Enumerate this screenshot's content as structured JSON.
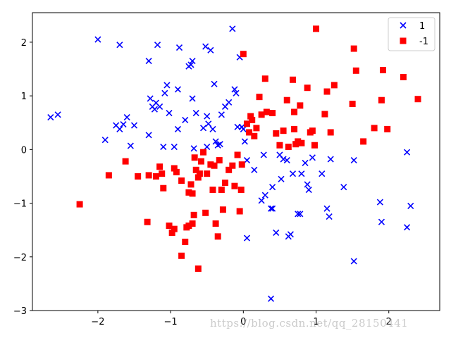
{
  "chart_data": {
    "type": "scatter",
    "title": "",
    "xlabel": "",
    "ylabel": "",
    "xlim": [
      -2.9,
      2.7
    ],
    "ylim": [
      -3.0,
      2.55
    ],
    "x_ticks": [
      -2,
      -1,
      0,
      1,
      2
    ],
    "y_ticks": [
      2,
      1,
      0,
      -1,
      -2,
      -3
    ],
    "tick_labels_x": [
      "−2",
      "−1",
      "0",
      "1",
      "2"
    ],
    "tick_labels_y": [
      "2",
      "1",
      "0",
      "−1",
      "−2",
      "−3"
    ],
    "grid": false,
    "legend_position": "upper-right",
    "series": [
      {
        "name": "1",
        "marker": "x",
        "color": "#0000ff",
        "points": [
          [
            -2.65,
            0.6
          ],
          [
            -2.55,
            0.65
          ],
          [
            -2.0,
            2.05
          ],
          [
            -1.9,
            0.18
          ],
          [
            -1.75,
            0.45
          ],
          [
            -1.7,
            1.95
          ],
          [
            -1.7,
            0.38
          ],
          [
            -1.65,
            0.47
          ],
          [
            -1.6,
            0.6
          ],
          [
            -1.55,
            0.07
          ],
          [
            -1.5,
            0.45
          ],
          [
            -1.3,
            1.65
          ],
          [
            -1.3,
            0.27
          ],
          [
            -1.28,
            0.95
          ],
          [
            -1.25,
            0.8
          ],
          [
            -1.22,
            0.75
          ],
          [
            -1.2,
            0.87
          ],
          [
            -1.18,
            1.95
          ],
          [
            -1.15,
            0.8
          ],
          [
            -1.1,
            0.05
          ],
          [
            -1.08,
            1.05
          ],
          [
            -1.05,
            1.2
          ],
          [
            -1.02,
            0.68
          ],
          [
            -0.95,
            0.05
          ],
          [
            -0.9,
            1.12
          ],
          [
            -0.9,
            0.38
          ],
          [
            -0.88,
            1.9
          ],
          [
            -0.8,
            0.55
          ],
          [
            -0.75,
            1.55
          ],
          [
            -0.72,
            1.58
          ],
          [
            -0.7,
            1.65
          ],
          [
            -0.7,
            0.95
          ],
          [
            -0.68,
            0.02
          ],
          [
            -0.65,
            0.68
          ],
          [
            -0.55,
            0.4
          ],
          [
            -0.52,
            1.92
          ],
          [
            -0.5,
            0.62
          ],
          [
            -0.5,
            0.05
          ],
          [
            -0.48,
            0.48
          ],
          [
            -0.45,
            1.85
          ],
          [
            -0.42,
            0.38
          ],
          [
            -0.4,
            1.22
          ],
          [
            -0.38,
            0.15
          ],
          [
            -0.35,
            0.08
          ],
          [
            -0.32,
            0.1
          ],
          [
            -0.3,
            0.65
          ],
          [
            -0.25,
            0.8
          ],
          [
            -0.2,
            0.88
          ],
          [
            -0.15,
            2.25
          ],
          [
            -0.12,
            1.12
          ],
          [
            -0.1,
            1.05
          ],
          [
            -0.08,
            0.42
          ],
          [
            -0.05,
            1.72
          ],
          [
            -0.02,
            0.42
          ],
          [
            0.0,
            0.38
          ],
          [
            0.02,
            0.15
          ],
          [
            0.05,
            -0.2
          ],
          [
            0.05,
            -1.65
          ],
          [
            0.15,
            -0.38
          ],
          [
            0.25,
            -0.95
          ],
          [
            0.28,
            -0.1
          ],
          [
            0.3,
            -0.85
          ],
          [
            0.38,
            -1.1
          ],
          [
            0.38,
            -2.78
          ],
          [
            0.4,
            -1.1
          ],
          [
            0.4,
            -0.7
          ],
          [
            0.45,
            -1.55
          ],
          [
            0.5,
            -0.1
          ],
          [
            0.52,
            -0.55
          ],
          [
            0.55,
            -0.18
          ],
          [
            0.6,
            -0.2
          ],
          [
            0.62,
            -1.62
          ],
          [
            0.65,
            -1.58
          ],
          [
            0.68,
            -0.45
          ],
          [
            0.75,
            -1.2
          ],
          [
            0.78,
            -1.2
          ],
          [
            0.8,
            -0.45
          ],
          [
            0.85,
            -0.25
          ],
          [
            0.88,
            -0.65
          ],
          [
            0.9,
            -0.75
          ],
          [
            0.95,
            -0.15
          ],
          [
            1.08,
            -0.45
          ],
          [
            1.15,
            -1.1
          ],
          [
            1.18,
            -1.25
          ],
          [
            1.2,
            -0.18
          ],
          [
            1.38,
            -0.7
          ],
          [
            1.52,
            -0.2
          ],
          [
            1.52,
            -2.08
          ],
          [
            1.88,
            -0.98
          ],
          [
            1.9,
            -1.35
          ],
          [
            2.25,
            -0.05
          ],
          [
            2.25,
            -1.45
          ],
          [
            2.3,
            -1.05
          ]
        ]
      },
      {
        "name": "-1",
        "marker": "s",
        "color": "#ff0000",
        "points": [
          [
            -2.25,
            -1.02
          ],
          [
            -1.85,
            -0.48
          ],
          [
            -1.62,
            -0.22
          ],
          [
            -1.45,
            -0.5
          ],
          [
            -1.32,
            -1.35
          ],
          [
            -1.3,
            -0.48
          ],
          [
            -1.2,
            -0.5
          ],
          [
            -1.15,
            -0.32
          ],
          [
            -1.12,
            -0.45
          ],
          [
            -1.1,
            -0.72
          ],
          [
            -1.02,
            -1.42
          ],
          [
            -0.98,
            -1.55
          ],
          [
            -0.95,
            -1.48
          ],
          [
            -0.95,
            -0.35
          ],
          [
            -0.92,
            -0.42
          ],
          [
            -0.85,
            -0.58
          ],
          [
            -0.85,
            -1.98
          ],
          [
            -0.8,
            -1.72
          ],
          [
            -0.78,
            -1.45
          ],
          [
            -0.75,
            -1.42
          ],
          [
            -0.75,
            -0.8
          ],
          [
            -0.72,
            -0.65
          ],
          [
            -0.7,
            -1.38
          ],
          [
            -0.7,
            -0.82
          ],
          [
            -0.68,
            -1.22
          ],
          [
            -0.67,
            -0.15
          ],
          [
            -0.65,
            -0.38
          ],
          [
            -0.62,
            -2.22
          ],
          [
            -0.62,
            -0.52
          ],
          [
            -0.6,
            -0.45
          ],
          [
            -0.58,
            -0.22
          ],
          [
            -0.55,
            -0.05
          ],
          [
            -0.52,
            -1.18
          ],
          [
            -0.5,
            -0.45
          ],
          [
            -0.45,
            -0.28
          ],
          [
            -0.42,
            -0.75
          ],
          [
            -0.4,
            -0.3
          ],
          [
            -0.38,
            -1.38
          ],
          [
            -0.35,
            -1.62
          ],
          [
            -0.33,
            -0.2
          ],
          [
            -0.3,
            -0.75
          ],
          [
            -0.28,
            -1.12
          ],
          [
            -0.25,
            -0.62
          ],
          [
            -0.2,
            -0.38
          ],
          [
            -0.15,
            -0.3
          ],
          [
            -0.12,
            -0.68
          ],
          [
            -0.08,
            -0.1
          ],
          [
            -0.05,
            -1.15
          ],
          [
            -0.03,
            -0.75
          ],
          [
            -0.02,
            -0.28
          ],
          [
            0.0,
            1.78
          ],
          [
            0.05,
            0.48
          ],
          [
            0.08,
            0.32
          ],
          [
            0.1,
            0.62
          ],
          [
            0.12,
            0.55
          ],
          [
            0.15,
            0.25
          ],
          [
            0.18,
            0.4
          ],
          [
            0.22,
            0.98
          ],
          [
            0.25,
            0.65
          ],
          [
            0.3,
            1.32
          ],
          [
            0.32,
            0.7
          ],
          [
            0.4,
            0.68
          ],
          [
            0.45,
            0.3
          ],
          [
            0.5,
            0.08
          ],
          [
            0.55,
            0.35
          ],
          [
            0.6,
            0.92
          ],
          [
            0.62,
            0.05
          ],
          [
            0.68,
            1.3
          ],
          [
            0.7,
            0.7
          ],
          [
            0.7,
            0.38
          ],
          [
            0.72,
            0.1
          ],
          [
            0.75,
            0.15
          ],
          [
            0.78,
            0.82
          ],
          [
            0.8,
            0.12
          ],
          [
            0.88,
            1.15
          ],
          [
            0.92,
            0.32
          ],
          [
            0.95,
            0.35
          ],
          [
            0.98,
            0.08
          ],
          [
            1.0,
            2.25
          ],
          [
            1.12,
            0.66
          ],
          [
            1.15,
            1.08
          ],
          [
            1.2,
            0.32
          ],
          [
            1.25,
            1.2
          ],
          [
            1.5,
            0.85
          ],
          [
            1.52,
            1.88
          ],
          [
            1.55,
            1.47
          ],
          [
            1.65,
            0.15
          ],
          [
            1.8,
            0.4
          ],
          [
            1.9,
            0.92
          ],
          [
            1.92,
            1.48
          ],
          [
            1.98,
            0.38
          ],
          [
            2.2,
            1.35
          ],
          [
            2.4,
            0.94
          ]
        ]
      }
    ]
  },
  "watermark": "https://blog.csdn.net/qq_28150441"
}
